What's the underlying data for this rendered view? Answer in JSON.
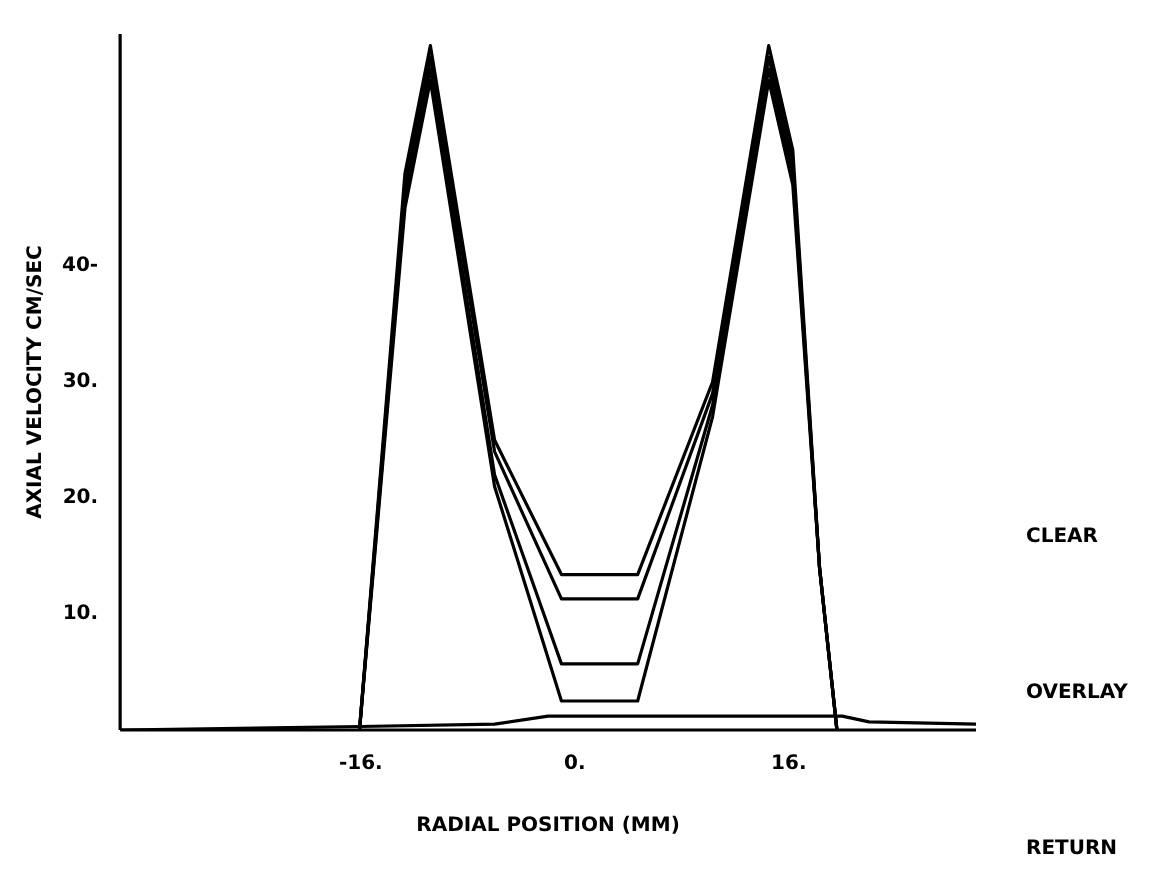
{
  "chart_data": {
    "type": "line",
    "xlabel": "RADIAL POSITION (MM)",
    "ylabel": "AXIAL VELOCITY CM/SEC",
    "xlim": [
      -34,
      30
    ],
    "ylim": [
      0,
      60
    ],
    "xticks": [
      {
        "value": -16,
        "label": "-16."
      },
      {
        "value": 0,
        "label": "0."
      },
      {
        "value": 16,
        "label": "16."
      }
    ],
    "yticks": [
      {
        "value": 10,
        "label": "10."
      },
      {
        "value": 20,
        "label": "20."
      },
      {
        "value": 30,
        "label": "30."
      },
      {
        "value": 40,
        "label": "40-"
      }
    ],
    "grid": false,
    "legend": false,
    "marker": "none",
    "line_style": "solid",
    "annotations": [
      "CLEAR",
      "OVERLAY",
      "RETURN"
    ],
    "series": [
      {
        "color": "#000000",
        "x": [
          -16.1,
          -12.7,
          -10.8,
          -6,
          -1,
          4.7,
          10.3,
          14.5,
          16.3,
          18.3,
          19.6
        ],
        "values": [
          0,
          48,
          59,
          25,
          13.4,
          13.4,
          30,
          59,
          50,
          14,
          0
        ]
      },
      {
        "color": "#000000",
        "x": [
          -16.1,
          -12.7,
          -10.8,
          -6,
          -1,
          4.7,
          10.3,
          14.5,
          16.3,
          18.3,
          19.6
        ],
        "values": [
          0,
          47,
          58,
          24,
          11.3,
          11.3,
          29,
          58,
          49,
          14,
          0
        ]
      },
      {
        "color": "#000000",
        "x": [
          -16.1,
          -12.7,
          -10.8,
          -6,
          -1,
          4.7,
          10.3,
          14.5,
          16.3,
          18.3,
          19.6
        ],
        "values": [
          0,
          46,
          57,
          22,
          5.7,
          5.7,
          28,
          57,
          48,
          14,
          0
        ]
      },
      {
        "color": "#000000",
        "x": [
          -16.1,
          -12.7,
          -10.8,
          -6,
          -1,
          4.7,
          10.3,
          14.5,
          16.3,
          18.3,
          19.6
        ],
        "values": [
          0,
          45,
          56,
          21,
          2.5,
          2.5,
          27,
          56,
          47,
          14,
          0
        ]
      },
      {
        "color": "#000000",
        "x": [
          -34,
          -16,
          -6,
          -2,
          20,
          22,
          30
        ],
        "values": [
          0,
          0.3,
          0.5,
          1.2,
          1.2,
          0.7,
          0.5
        ]
      }
    ]
  }
}
